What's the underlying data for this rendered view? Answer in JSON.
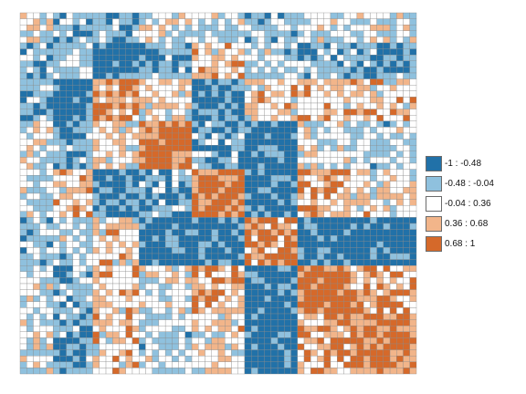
{
  "chart_data": {
    "type": "heatmap",
    "title": "",
    "xlabel": "",
    "ylabel": "",
    "grid": true,
    "rows": 60,
    "cols": 60,
    "value_range": [
      -1,
      1
    ],
    "legend_position": "right",
    "legend": [
      {
        "label": "-1 : -0.48",
        "min": -1.0,
        "max": -0.48,
        "color": "#2171a8"
      },
      {
        "label": "-0.48 : -0.04",
        "min": -0.48,
        "max": -0.04,
        "color": "#8fc1de"
      },
      {
        "label": "-0.04 : 0.36",
        "min": -0.04,
        "max": 0.36,
        "color": "#ffffff"
      },
      {
        "label": "0.36 : 0.68",
        "min": 0.36,
        "max": 0.68,
        "color": "#f2b58a"
      },
      {
        "label": "0.68 : 1",
        "min": 0.68,
        "max": 1.0,
        "color": "#d5692a"
      }
    ],
    "block_structure": {
      "cluster_bounds": [
        0,
        5,
        11,
        18,
        26,
        34,
        42,
        50,
        60
      ],
      "mean_correlation": [
        [
          0.05,
          -0.3,
          -0.35,
          0.1,
          -0.05,
          -0.3,
          0.1,
          0.05
        ],
        [
          -0.3,
          -0.1,
          -0.7,
          -0.35,
          0.4,
          -0.05,
          -0.3,
          -0.45
        ],
        [
          -0.35,
          -0.7,
          0.55,
          0.2,
          -0.65,
          0.3,
          0.4,
          0.35
        ],
        [
          0.1,
          -0.35,
          0.2,
          0.85,
          -0.4,
          -0.75,
          0.15,
          -0.05
        ],
        [
          -0.05,
          0.4,
          -0.65,
          -0.4,
          0.85,
          -0.6,
          0.5,
          0.25
        ],
        [
          -0.3,
          -0.05,
          0.3,
          -0.75,
          -0.6,
          0.75,
          -0.7,
          -0.75
        ],
        [
          0.1,
          -0.3,
          0.4,
          0.15,
          0.5,
          -0.7,
          0.85,
          0.55
        ],
        [
          0.05,
          -0.45,
          0.35,
          -0.05,
          0.25,
          -0.75,
          0.55,
          0.85
        ]
      ]
    }
  }
}
